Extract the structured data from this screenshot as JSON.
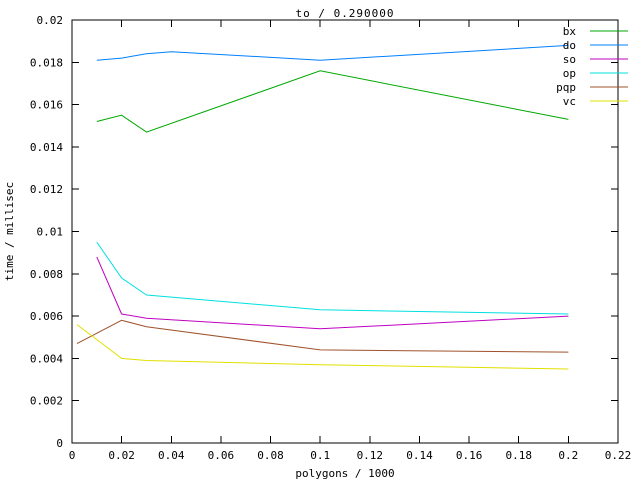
{
  "chart_data": {
    "type": "line",
    "title": "to / 0.290000",
    "xlabel": "polygons / 1000",
    "ylabel": "time / millisec",
    "xlim": [
      0,
      0.22
    ],
    "ylim": [
      0,
      0.02
    ],
    "grid": false,
    "legend_position": "top-right-inside",
    "axis_color": "#000000",
    "background_color": "#ffffff",
    "xticks": [
      {
        "value": 0,
        "label": "0"
      },
      {
        "value": 0.02,
        "label": "0.02"
      },
      {
        "value": 0.04,
        "label": "0.04"
      },
      {
        "value": 0.06,
        "label": "0.06"
      },
      {
        "value": 0.08,
        "label": "0.08"
      },
      {
        "value": 0.1,
        "label": "0.1"
      },
      {
        "value": 0.12,
        "label": "0.12"
      },
      {
        "value": 0.14,
        "label": "0.14"
      },
      {
        "value": 0.16,
        "label": "0.16"
      },
      {
        "value": 0.18,
        "label": "0.18"
      },
      {
        "value": 0.2,
        "label": "0.2"
      },
      {
        "value": 0.22,
        "label": "0.22"
      }
    ],
    "yticks": [
      {
        "value": 0,
        "label": "0"
      },
      {
        "value": 0.002,
        "label": "0.002"
      },
      {
        "value": 0.004,
        "label": "0.004"
      },
      {
        "value": 0.006,
        "label": "0.006"
      },
      {
        "value": 0.008,
        "label": "0.008"
      },
      {
        "value": 0.01,
        "label": "0.01"
      },
      {
        "value": 0.012,
        "label": "0.012"
      },
      {
        "value": 0.014,
        "label": "0.014"
      },
      {
        "value": 0.016,
        "label": "0.016"
      },
      {
        "value": 0.018,
        "label": "0.018"
      },
      {
        "value": 0.02,
        "label": "0.02"
      }
    ],
    "series": [
      {
        "name": "bx",
        "color": "#00a800",
        "points": [
          [
            0.01,
            0.0152
          ],
          [
            0.02,
            0.0155
          ],
          [
            0.03,
            0.0147
          ],
          [
            0.1,
            0.0176
          ],
          [
            0.2,
            0.0153
          ]
        ]
      },
      {
        "name": "do",
        "color": "#0080ff",
        "points": [
          [
            0.01,
            0.0181
          ],
          [
            0.02,
            0.0182
          ],
          [
            0.03,
            0.0184
          ],
          [
            0.04,
            0.0185
          ],
          [
            0.1,
            0.0181
          ],
          [
            0.2,
            0.0188
          ]
        ]
      },
      {
        "name": "so",
        "color": "#c000c0",
        "points": [
          [
            0.01,
            0.0088
          ],
          [
            0.02,
            0.0061
          ],
          [
            0.03,
            0.0059
          ],
          [
            0.1,
            0.0054
          ],
          [
            0.2,
            0.006
          ]
        ]
      },
      {
        "name": "op",
        "color": "#00e0e0",
        "points": [
          [
            0.01,
            0.0095
          ],
          [
            0.02,
            0.0078
          ],
          [
            0.03,
            0.007
          ],
          [
            0.1,
            0.0063
          ],
          [
            0.2,
            0.0061
          ]
        ]
      },
      {
        "name": "pqp",
        "color": "#a0522d",
        "points": [
          [
            0.002,
            0.0047
          ],
          [
            0.02,
            0.0058
          ],
          [
            0.03,
            0.0055
          ],
          [
            0.1,
            0.0044
          ],
          [
            0.2,
            0.0043
          ]
        ]
      },
      {
        "name": "vc",
        "color": "#e0e000",
        "points": [
          [
            0.002,
            0.0056
          ],
          [
            0.02,
            0.004
          ],
          [
            0.03,
            0.0039
          ],
          [
            0.1,
            0.0037
          ],
          [
            0.2,
            0.0035
          ]
        ]
      }
    ]
  }
}
